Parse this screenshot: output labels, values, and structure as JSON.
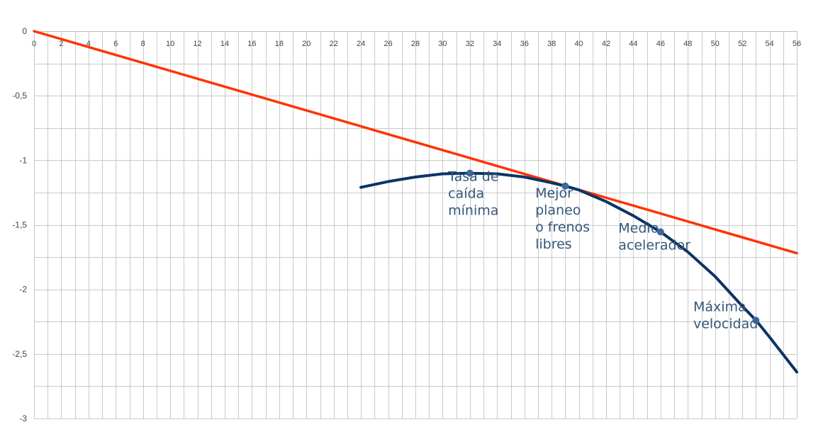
{
  "chart_data": {
    "type": "line",
    "title": "",
    "xlabel": "",
    "ylabel": "",
    "xlim": [
      0,
      56
    ],
    "ylim": [
      -3,
      0
    ],
    "x_ticks": [
      0,
      2,
      4,
      6,
      8,
      10,
      12,
      14,
      16,
      18,
      20,
      22,
      24,
      26,
      28,
      30,
      32,
      34,
      36,
      38,
      40,
      42,
      44,
      46,
      48,
      50,
      52,
      54,
      56
    ],
    "y_ticks": [
      0,
      -0.5,
      -1,
      -1.5,
      -2,
      -2.5,
      -3
    ],
    "y_tick_labels": [
      "0",
      "-0,5",
      "-1",
      "-1,5",
      "-2",
      "-2,5",
      "-3"
    ],
    "grid": true,
    "legend": "none",
    "series": [
      {
        "color": "#ff3300",
        "x": [
          0,
          56
        ],
        "y": [
          0,
          -1.72
        ]
      },
      {
        "color": "#0b3464",
        "x": [
          24,
          26,
          28,
          30,
          32,
          34,
          36,
          38,
          39,
          40,
          42,
          44,
          46,
          48,
          50,
          52,
          53,
          54,
          56
        ],
        "y": [
          -1.21,
          -1.165,
          -1.13,
          -1.105,
          -1.1,
          -1.105,
          -1.13,
          -1.175,
          -1.2,
          -1.23,
          -1.32,
          -1.43,
          -1.555,
          -1.71,
          -1.9,
          -2.13,
          -2.24,
          -2.37,
          -2.64
        ]
      }
    ],
    "markers": [
      {
        "x": 32,
        "y": -1.1,
        "color": "#3b6aa0"
      },
      {
        "x": 39,
        "y": -1.2,
        "color": "#3b6aa0"
      },
      {
        "x": 46,
        "y": -1.555,
        "color": "#3b6aa0"
      },
      {
        "x": 53,
        "y": -2.24,
        "color": "#3b6aa0"
      }
    ],
    "annotations": [
      {
        "x": 30.4,
        "y": -1.16,
        "lines": [
          "Tasa de",
          "caída",
          "mínima"
        ]
      },
      {
        "x": 36.8,
        "y": -1.29,
        "lines": [
          "Mejor",
          "planeo",
          "o frenos",
          "libres"
        ]
      },
      {
        "x": 42.9,
        "y": -1.56,
        "lines": [
          "Medio",
          "acelerador"
        ]
      },
      {
        "x": 48.4,
        "y": -2.17,
        "lines": [
          "Máxima",
          "velocidad"
        ]
      }
    ]
  }
}
